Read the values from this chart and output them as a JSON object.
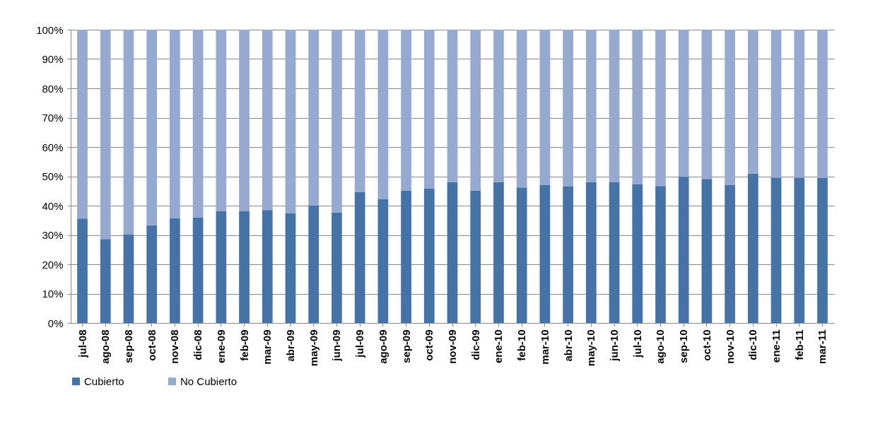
{
  "chart_data": {
    "type": "bar",
    "stacked": true,
    "categories": [
      "jul-08",
      "ago-08",
      "sep-08",
      "oct-08",
      "nov-08",
      "dic-08",
      "ene-09",
      "feb-09",
      "mar-09",
      "abr-09",
      "may-09",
      "jun-09",
      "jul-09",
      "ago-09",
      "sep-09",
      "oct-09",
      "nov-09",
      "dic-09",
      "ene-10",
      "feb-10",
      "mar-10",
      "abr-10",
      "may-10",
      "jun-10",
      "jul-10",
      "ago-10",
      "sep-10",
      "oct-10",
      "nov-10",
      "dic-10",
      "ene-11",
      "feb-11",
      "mar-11"
    ],
    "series": [
      {
        "name": "Cubierto",
        "color": "#4572a7",
        "values": [
          35.6,
          28.6,
          30.1,
          33.3,
          35.7,
          36.0,
          38.2,
          38.2,
          38.5,
          37.5,
          40.0,
          37.7,
          44.7,
          42.3,
          45.2,
          45.9,
          48.1,
          45.1,
          48.1,
          46.2,
          47.0,
          46.5,
          48.1,
          48.1,
          47.2,
          46.7,
          49.8,
          49.1,
          47.0,
          50.9,
          49.6,
          49.6,
          49.4
        ]
      },
      {
        "name": "No Cubierto",
        "color": "#95a9d1",
        "values": [
          64.4,
          71.4,
          69.9,
          66.7,
          64.3,
          64.0,
          61.8,
          61.8,
          61.5,
          62.5,
          60.0,
          62.3,
          55.3,
          57.7,
          54.8,
          54.1,
          51.9,
          54.9,
          51.9,
          53.8,
          53.0,
          53.5,
          51.9,
          51.9,
          52.8,
          53.3,
          50.2,
          50.9,
          53.0,
          49.1,
          50.4,
          50.4,
          50.6
        ]
      }
    ],
    "ylim": [
      0,
      100
    ],
    "yticks": [
      {
        "value": 0,
        "label": "0%"
      },
      {
        "value": 10,
        "label": "10%"
      },
      {
        "value": 20,
        "label": "20%"
      },
      {
        "value": 30,
        "label": "30%"
      },
      {
        "value": 40,
        "label": "40%"
      },
      {
        "value": 50,
        "label": "50%"
      },
      {
        "value": 60,
        "label": "60%"
      },
      {
        "value": 70,
        "label": "70%"
      },
      {
        "value": 80,
        "label": "80%"
      },
      {
        "value": 90,
        "label": "90%"
      },
      {
        "value": 100,
        "label": "100%"
      }
    ],
    "grid": "y",
    "legend": "bottom"
  }
}
